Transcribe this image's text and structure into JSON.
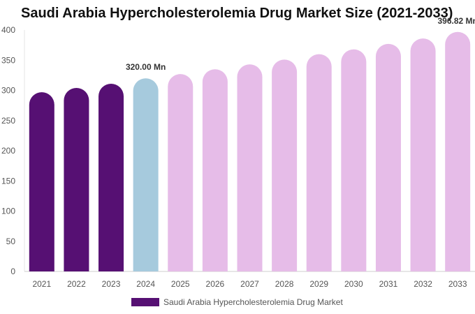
{
  "title": "Saudi Arabia Hypercholesterolemia Drug Market Size (2021-2033)",
  "legend": {
    "label": "Saudi Arabia Hypercholesterolemia Drug Market",
    "color": "#561073"
  },
  "colors": {
    "historical": "#561073",
    "base_year": "#a6cadd",
    "forecast": "#e6bce8",
    "axis_text": "#555555"
  },
  "chart_data": {
    "type": "bar",
    "categories": [
      "2021",
      "2022",
      "2023",
      "2024",
      "2025",
      "2026",
      "2027",
      "2028",
      "2029",
      "2030",
      "2031",
      "2032",
      "2033"
    ],
    "series": [
      {
        "name": "Saudi Arabia Hypercholesterolemia Drug Market",
        "values": [
          297,
          304,
          311,
          320,
          327,
          335,
          343,
          351,
          360,
          368,
          377,
          386,
          396.82
        ]
      }
    ],
    "bar_kinds": [
      "historical",
      "historical",
      "historical",
      "base_year",
      "forecast",
      "forecast",
      "forecast",
      "forecast",
      "forecast",
      "forecast",
      "forecast",
      "forecast",
      "forecast"
    ],
    "ylim": [
      0,
      400
    ],
    "yticks": [
      0,
      50,
      100,
      150,
      200,
      250,
      300,
      350,
      400
    ],
    "data_labels": [
      {
        "index": 3,
        "text": "320.00 Mn"
      },
      {
        "index": 12,
        "text": "396.82 Mn"
      }
    ],
    "grid": false,
    "legend_position": "bottom"
  }
}
